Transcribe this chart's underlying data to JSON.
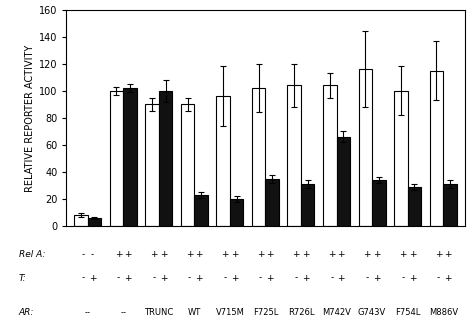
{
  "groups": [
    {
      "white_val": 8,
      "white_err": 1.5,
      "black_val": 6,
      "black_err": 1,
      "rel_a": "--",
      "t": "-+",
      "ar": "--"
    },
    {
      "white_val": 100,
      "white_err": 3,
      "black_val": 102,
      "black_err": 3,
      "rel_a": "++",
      "t": "-+",
      "ar": "--"
    },
    {
      "white_val": 90,
      "white_err": 5,
      "black_val": 100,
      "black_err": 8,
      "rel_a": "++",
      "t": "-+",
      "ar": "TRUNC"
    },
    {
      "white_val": 90,
      "white_err": 5,
      "black_val": 23,
      "black_err": 2,
      "rel_a": "++",
      "t": "-+",
      "ar": "WT"
    },
    {
      "white_val": 96,
      "white_err": 22,
      "black_val": 20,
      "black_err": 2,
      "rel_a": "++",
      "t": "-+",
      "ar": "V715M"
    },
    {
      "white_val": 102,
      "white_err": 18,
      "black_val": 35,
      "black_err": 3,
      "rel_a": "++",
      "t": "-+",
      "ar": "F725L"
    },
    {
      "white_val": 104,
      "white_err": 16,
      "black_val": 31,
      "black_err": 3,
      "rel_a": "++",
      "t": "-+",
      "ar": "R726L"
    },
    {
      "white_val": 104,
      "white_err": 9,
      "black_val": 66,
      "black_err": 4,
      "rel_a": "++",
      "t": "-+",
      "ar": "M742V"
    },
    {
      "white_val": 116,
      "white_err": 28,
      "black_val": 34,
      "black_err": 2,
      "rel_a": "++",
      "t": "-+",
      "ar": "G743V"
    },
    {
      "white_val": 100,
      "white_err": 18,
      "black_val": 29,
      "black_err": 2,
      "rel_a": "++",
      "t": "-+",
      "ar": "F754L"
    },
    {
      "white_val": 115,
      "white_err": 22,
      "black_val": 31,
      "black_err": 3,
      "rel_a": "++",
      "t": "-+",
      "ar": "M886V"
    }
  ],
  "ylabel": "RELATIVE REPORTER ACTIVITY",
  "ylim": [
    0,
    160
  ],
  "yticks": [
    0,
    20,
    40,
    60,
    80,
    100,
    120,
    140,
    160
  ],
  "bar_width": 0.38,
  "white_color": "#ffffff",
  "black_color": "#111111",
  "edge_color": "#000000",
  "bg_color": "#ffffff",
  "ylabel_fontsize": 7,
  "tick_fontsize": 7,
  "annot_fontsize": 6.5,
  "ar_fontsize": 6.0
}
